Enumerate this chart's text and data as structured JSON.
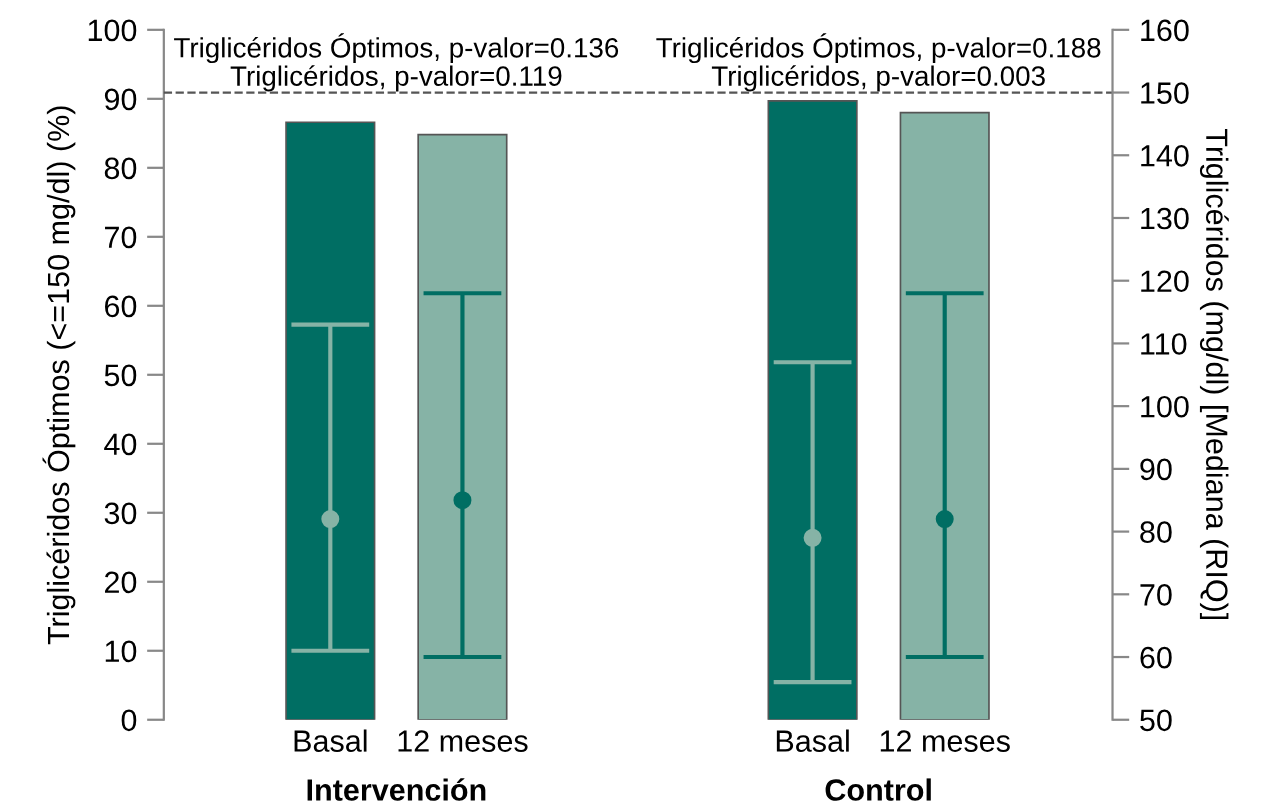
{
  "chart_data": {
    "type": "bar",
    "categories": [
      "Basal",
      "12 meses",
      "Basal",
      "12 meses"
    ],
    "series": [
      {
        "colors": [
          "#006e63",
          "#86b3a6",
          "#006e63",
          "#86b3a6"
        ],
        "values": [
          86.6,
          84.8,
          89.7,
          88.0
        ]
      },
      {
        "type": "scatter",
        "axis": "y2",
        "colors": [
          "#86b3a6",
          "#006e63",
          "#86b3a6",
          "#006e63"
        ],
        "values": [
          82,
          85,
          79,
          82
        ],
        "errors": [
          [
            61,
            113
          ],
          [
            60,
            118
          ],
          [
            56,
            107
          ],
          [
            60,
            118
          ]
        ]
      }
    ],
    "ylabel": "Triglicéridos Óptimos (<=150 mg/dl) (%)",
    "y2label": "Triglicéridos (mg/dl) [Mediana (RIQ)]",
    "ylim": [
      0,
      100
    ],
    "yticks": [
      0,
      10,
      20,
      30,
      40,
      50,
      60,
      70,
      80,
      90,
      100
    ],
    "y2lim": [
      50,
      160
    ],
    "y2ticks": [
      50,
      60,
      70,
      80,
      90,
      100,
      110,
      120,
      130,
      140,
      150,
      160
    ],
    "ref_lines": [
      {
        "axis": "y2",
        "value": 150,
        "color": "#555555",
        "line_style": "dashed"
      }
    ],
    "annotations": [
      "Triglicéridos Óptimos, p-valor=0.136\nTriglicéridos, p-valor=0.119",
      "Triglicéridos Óptimos, p-valor=0.188\nTriglicéridos, p-valor=0.003",
      "Intervención",
      "Control"
    ],
    "marker": "circle",
    "grid": false
  }
}
